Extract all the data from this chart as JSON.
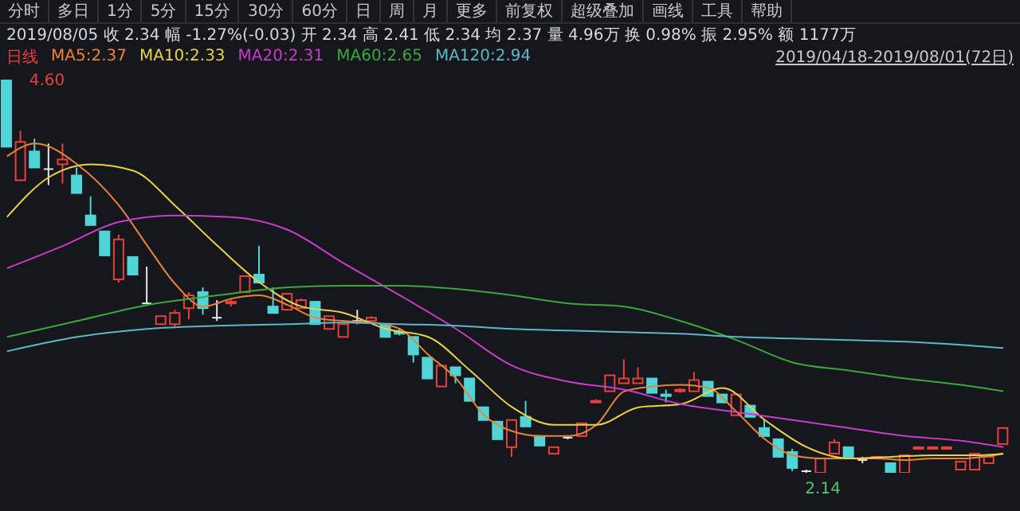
{
  "chart_data": {
    "type": "candlestick",
    "title": "2019/08/05 收 2.34 幅 -1.27%(-0.03) 开 2.34 高 2.41 低 2.34 均 2.37 量 4.96万 换 0.98% 振 2.95% 额 1177万",
    "subtitle": "2019/04/18-2019/08/01(72日)",
    "annotations": [
      "分时",
      "多日",
      "1分",
      "5分",
      "15分",
      "30分",
      "60分",
      "日",
      "周",
      "月",
      "更多",
      "前复权",
      "超级叠加",
      "画线",
      "工具",
      "帮助"
    ],
    "legend": "top left",
    "categories": [
      null,
      null,
      null,
      null,
      null,
      null,
      null,
      null,
      null,
      null,
      null,
      null,
      null,
      null,
      null,
      null,
      null,
      null,
      null,
      null,
      null,
      null,
      null,
      null,
      null,
      null,
      null,
      null,
      null,
      null,
      null,
      null,
      null,
      null,
      null,
      null,
      null,
      null,
      null,
      null,
      null,
      null,
      null,
      null,
      null,
      null,
      null,
      null,
      null,
      null,
      null,
      null,
      null,
      null,
      null,
      null,
      null,
      null,
      null,
      null,
      null,
      null,
      null,
      null,
      null,
      null,
      null,
      null,
      null,
      null,
      null,
      null
    ],
    "series": [
      {
        "name": "日线",
        "color": "#e8403c",
        "colors": [
          "#50d4d8",
          "#e8403c",
          "#50d4d8",
          "#e6e6e6",
          "#e8403c",
          "#50d4d8",
          "#50d4d8",
          "#50d4d8",
          "#e8403c",
          "#50d4d8",
          "#e6e6e6",
          "#e8403c",
          "#e8403c",
          "#e8403c",
          "#50d4d8",
          "#e6e6e6",
          "#e8403c",
          "#e8403c",
          "#50d4d8",
          "#50d4d8",
          "#e8403c",
          "#e8403c",
          "#50d4d8",
          "#e8403c",
          "#e8403c",
          "#e6e6e6",
          "#e8403c",
          "#50d4d8",
          "#50d4d8",
          "#50d4d8",
          "#50d4d8",
          "#e8403c",
          "#50d4d8",
          "#50d4d8",
          "#50d4d8",
          "#50d4d8",
          "#e8403c",
          "#50d4d8",
          "#50d4d8",
          "#e8403c",
          "#e6e6e6",
          "#e8403c",
          "#e8403c",
          "#e8403c",
          "#e8403c",
          "#e8403c",
          "#50d4d8",
          "#50d4d8",
          "#e8403c",
          "#e8403c",
          "#50d4d8",
          "#50d4d8",
          "#e8403c",
          "#50d4d8",
          "#50d4d8",
          "#50d4d8",
          "#50d4d8",
          "#e6e6e6",
          "#e8403c",
          "#e8403c",
          "#50d4d8",
          "#e6e6e6",
          "#e8403c",
          "#50d4d8",
          "#e8403c",
          "#e8403c",
          "#e8403c",
          "#e8403c",
          "#e8403c",
          "#e8403c",
          "#e8403c",
          "#e8403c"
        ],
        "value_labels": [
          "4.60",
          null,
          null,
          null,
          null,
          null,
          null,
          null,
          null,
          null,
          null,
          null,
          null,
          null,
          null,
          null,
          null,
          null,
          null,
          null,
          null,
          null,
          null,
          null,
          null,
          null,
          null,
          null,
          null,
          null,
          null,
          null,
          null,
          null,
          null,
          null,
          null,
          null,
          null,
          null,
          null,
          null,
          null,
          null,
          null,
          null,
          null,
          null,
          null,
          null,
          null,
          null,
          null,
          null,
          null,
          null,
          null,
          "2.14",
          null,
          null,
          null,
          null,
          null,
          null,
          null,
          null,
          null,
          null,
          null,
          null,
          null,
          null
        ],
        "ohlc": [
          [
            4.6,
            4.6,
            4.18,
            4.18
          ],
          [
            3.97,
            4.28,
            3.97,
            4.21
          ],
          [
            4.15,
            4.23,
            4.05,
            4.05
          ],
          [
            4.04,
            4.2,
            3.94,
            4.04
          ],
          [
            4.07,
            4.2,
            3.95,
            4.1
          ],
          [
            4.0,
            4.05,
            3.89,
            3.89
          ],
          [
            3.75,
            3.87,
            3.69,
            3.69
          ],
          [
            3.65,
            3.65,
            3.5,
            3.5
          ],
          [
            3.35,
            3.63,
            3.33,
            3.6
          ],
          [
            3.49,
            3.49,
            3.38,
            3.38
          ],
          [
            3.2,
            3.43,
            3.2,
            3.2
          ],
          [
            3.07,
            3.12,
            3.07,
            3.12
          ],
          [
            3.07,
            3.16,
            3.05,
            3.14
          ],
          [
            3.17,
            3.27,
            3.1,
            3.25
          ],
          [
            3.27,
            3.3,
            3.13,
            3.17
          ],
          [
            3.11,
            3.22,
            3.09,
            3.11
          ],
          [
            3.2,
            3.23,
            3.18,
            3.21
          ],
          [
            3.27,
            3.37,
            3.27,
            3.37
          ],
          [
            3.38,
            3.56,
            3.33,
            3.33
          ],
          [
            3.18,
            3.3,
            3.14,
            3.14
          ],
          [
            3.16,
            3.26,
            3.16,
            3.26
          ],
          [
            3.17,
            3.23,
            3.17,
            3.22
          ],
          [
            3.21,
            3.21,
            3.07,
            3.07
          ],
          [
            3.04,
            3.12,
            3.04,
            3.12
          ],
          [
            2.99,
            3.07,
            2.99,
            3.07
          ],
          [
            3.09,
            3.16,
            3.07,
            3.09
          ],
          [
            3.09,
            3.12,
            3.09,
            3.11
          ],
          [
            3.07,
            3.07,
            2.99,
            2.99
          ],
          [
            3.02,
            3.04,
            3.0,
            3.01
          ],
          [
            2.99,
            2.99,
            2.83,
            2.88
          ],
          [
            2.86,
            2.86,
            2.73,
            2.73
          ],
          [
            2.68,
            2.81,
            2.68,
            2.81
          ],
          [
            2.8,
            2.8,
            2.7,
            2.75
          ],
          [
            2.73,
            2.73,
            2.59,
            2.59
          ],
          [
            2.55,
            2.55,
            2.47,
            2.47
          ],
          [
            2.46,
            2.46,
            2.35,
            2.35
          ],
          [
            2.3,
            2.47,
            2.24,
            2.47
          ],
          [
            2.49,
            2.59,
            2.43,
            2.43
          ],
          [
            2.37,
            2.37,
            2.31,
            2.31
          ],
          [
            2.26,
            2.3,
            2.26,
            2.3
          ],
          [
            2.36,
            2.37,
            2.35,
            2.36
          ],
          [
            2.37,
            2.45,
            2.37,
            2.45
          ],
          [
            2.58,
            2.6,
            2.58,
            2.59
          ],
          [
            2.65,
            2.75,
            2.65,
            2.75
          ],
          [
            2.7,
            2.85,
            2.7,
            2.73
          ],
          [
            2.7,
            2.8,
            2.7,
            2.73
          ],
          [
            2.73,
            2.73,
            2.64,
            2.64
          ],
          [
            2.63,
            2.66,
            2.58,
            2.62
          ],
          [
            2.65,
            2.67,
            2.64,
            2.66
          ],
          [
            2.65,
            2.77,
            2.65,
            2.72
          ],
          [
            2.71,
            2.71,
            2.62,
            2.62
          ],
          [
            2.63,
            2.63,
            2.58,
            2.58
          ],
          [
            2.5,
            2.63,
            2.5,
            2.63
          ],
          [
            2.56,
            2.56,
            2.49,
            2.49
          ],
          [
            2.42,
            2.47,
            2.37,
            2.37
          ],
          [
            2.35,
            2.35,
            2.24,
            2.24
          ],
          [
            2.27,
            2.29,
            2.15,
            2.17
          ],
          [
            2.15,
            2.16,
            2.14,
            2.15
          ],
          [
            2.14,
            2.23,
            2.14,
            2.23
          ],
          [
            2.26,
            2.35,
            2.26,
            2.33
          ],
          [
            2.3,
            2.3,
            2.24,
            2.24
          ],
          [
            2.22,
            2.24,
            2.2,
            2.22
          ],
          [
            2.23,
            2.24,
            2.23,
            2.24
          ],
          [
            2.2,
            2.2,
            2.14,
            2.14
          ],
          [
            2.14,
            2.25,
            2.14,
            2.25
          ],
          [
            2.29,
            2.3,
            2.29,
            2.3
          ],
          [
            2.29,
            2.3,
            2.29,
            2.3
          ],
          [
            2.29,
            2.3,
            2.29,
            2.3
          ],
          [
            2.16,
            2.21,
            2.16,
            2.21
          ],
          [
            2.16,
            2.26,
            2.16,
            2.26
          ],
          [
            2.2,
            2.24,
            2.2,
            2.24
          ],
          [
            2.32,
            2.42,
            2.32,
            2.42
          ]
        ]
      },
      {
        "name": "MA5:2.37",
        "type": "line",
        "color": "#e8843a",
        "values": [
          4.12,
          null,
          4.2,
          null,
          null,
          4.07,
          null,
          null,
          3.81,
          null,
          3.56,
          null,
          3.32,
          null,
          3.18,
          null,
          3.23,
          null,
          3.25,
          null,
          3.19,
          null,
          3.11,
          null,
          3.09,
          null,
          3.08,
          null,
          3.04,
          null,
          2.88,
          null,
          2.73,
          null,
          2.5,
          null,
          2.4,
          null,
          2.37,
          null,
          2.37,
          null,
          2.44,
          null,
          2.65,
          null,
          2.68,
          null,
          2.69,
          null,
          2.67,
          null,
          2.52,
          null,
          2.35,
          null,
          2.25,
          null,
          2.23,
          null,
          2.23,
          null,
          2.23,
          null,
          2.22,
          null,
          2.23,
          null,
          2.23,
          null,
          null,
          2.26
        ]
      },
      {
        "name": "MA10:2.33",
        "type": "line",
        "color": "#e8d24a",
        "values": [
          3.74,
          null,
          null,
          3.99,
          null,
          null,
          4.07,
          null,
          null,
          4.03,
          null,
          null,
          3.81,
          null,
          null,
          3.56,
          null,
          null,
          3.33,
          null,
          null,
          3.18,
          null,
          null,
          3.14,
          null,
          null,
          3.04,
          null,
          null,
          2.99,
          null,
          null,
          2.78,
          null,
          null,
          2.55,
          null,
          null,
          2.44,
          null,
          null,
          2.44,
          null,
          null,
          2.55,
          null,
          null,
          2.57,
          null,
          null,
          2.67,
          null,
          null,
          2.47,
          null,
          null,
          2.3,
          null,
          null,
          2.23,
          null,
          null,
          2.24,
          null,
          null,
          2.25,
          null,
          null,
          2.25,
          null,
          2.26
        ]
      },
      {
        "name": "MA20:2.31",
        "type": "line",
        "color": "#c93cc9",
        "values": [
          3.42,
          null,
          null,
          null,
          3.56,
          null,
          null,
          null,
          3.71,
          null,
          null,
          null,
          3.75,
          null,
          null,
          null,
          3.74,
          null,
          null,
          null,
          3.66,
          null,
          null,
          null,
          3.45,
          null,
          null,
          null,
          3.25,
          null,
          null,
          null,
          3.04,
          null,
          null,
          null,
          2.81,
          null,
          null,
          null,
          2.71,
          null,
          null,
          null,
          2.66,
          null,
          null,
          null,
          2.57,
          null,
          null,
          null,
          2.52,
          null,
          null,
          null,
          2.47,
          null,
          null,
          null,
          2.42,
          null,
          null,
          null,
          2.37,
          null,
          null,
          null,
          2.34,
          null,
          null,
          2.3
        ]
      },
      {
        "name": "MA60:2.65",
        "type": "line",
        "color": "#3aa83a",
        "values": [
          2.99,
          null,
          null,
          null,
          null,
          3.09,
          null,
          null,
          null,
          null,
          3.19,
          null,
          null,
          null,
          null,
          3.25,
          null,
          null,
          null,
          null,
          3.3,
          null,
          null,
          null,
          3.31,
          null,
          null,
          null,
          3.31,
          null,
          null,
          null,
          3.29,
          null,
          null,
          null,
          3.25,
          null,
          null,
          null,
          3.2,
          null,
          null,
          null,
          3.18,
          null,
          null,
          null,
          3.09,
          null,
          null,
          null,
          2.97,
          null,
          null,
          null,
          2.83,
          null,
          null,
          null,
          2.78,
          null,
          null,
          null,
          2.73,
          null,
          null,
          null,
          2.69,
          null,
          null,
          2.65
        ]
      },
      {
        "name": "MA120:2.94",
        "type": "line",
        "color": "#5ab8c8",
        "values": [
          2.9,
          null,
          null,
          null,
          null,
          2.99,
          null,
          null,
          null,
          null,
          3.04,
          null,
          null,
          null,
          null,
          3.06,
          null,
          null,
          null,
          null,
          3.07,
          null,
          null,
          null,
          3.08,
          null,
          null,
          null,
          3.07,
          null,
          null,
          null,
          3.06,
          null,
          null,
          null,
          3.04,
          null,
          null,
          null,
          3.03,
          null,
          null,
          null,
          3.02,
          null,
          null,
          null,
          3.01,
          null,
          null,
          null,
          2.99,
          null,
          null,
          null,
          2.98,
          null,
          null,
          null,
          2.97,
          null,
          null,
          null,
          2.96,
          null,
          null,
          null,
          2.94,
          null,
          null,
          2.92
        ]
      }
    ]
  }
}
